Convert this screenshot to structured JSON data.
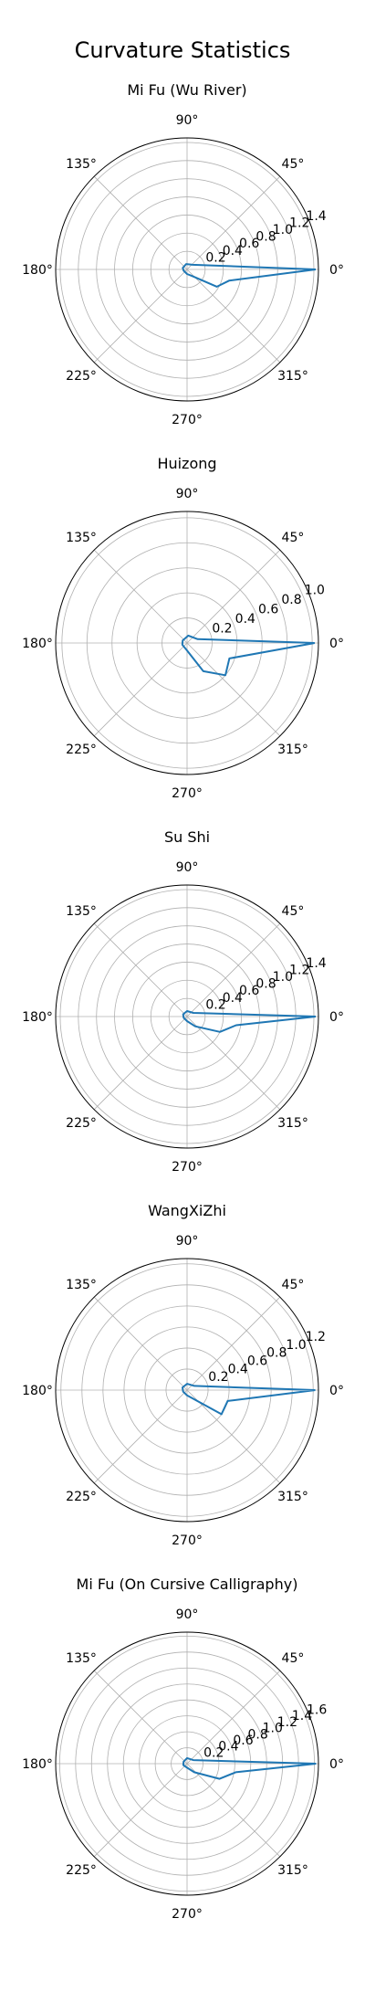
{
  "page_title": "Curvature Statistics",
  "chart_data": [
    {
      "type": "polar_line",
      "title": "Mi Fu (Wu River)",
      "theta_tick_labels": [
        "0°",
        "45°",
        "90°",
        "135°",
        "180°",
        "225°",
        "270°",
        "315°"
      ],
      "r_ticks": [
        0.2,
        0.4,
        0.6,
        0.8,
        1.0,
        1.2,
        1.4
      ],
      "r_tick_labels": [
        "0.2",
        "0.4",
        "0.6",
        "0.8",
        "1.0",
        "1.2",
        "1.4"
      ],
      "rmax": 1.45,
      "series": [
        {
          "color": "#1f77b4",
          "points": [
            {
              "theta": 0,
              "r": 1.42
            },
            {
              "theta": 345,
              "r": 0.48
            },
            {
              "theta": 330,
              "r": 0.38
            },
            {
              "theta": 310,
              "r": 0.1
            },
            {
              "theta": 270,
              "r": 0.05
            },
            {
              "theta": 200,
              "r": 0.04
            },
            {
              "theta": 160,
              "r": 0.05
            },
            {
              "theta": 100,
              "r": 0.06
            },
            {
              "theta": 40,
              "r": 0.08
            },
            {
              "theta": 0,
              "r": 1.42
            }
          ]
        }
      ]
    },
    {
      "type": "polar_line",
      "title": "Huizong",
      "theta_tick_labels": [
        "0°",
        "45°",
        "90°",
        "135°",
        "180°",
        "225°",
        "270°",
        "315°"
      ],
      "r_ticks": [
        0.2,
        0.4,
        0.6,
        0.8,
        1.0
      ],
      "r_tick_labels": [
        "0.2",
        "0.4",
        "0.6",
        "0.8",
        "1.0"
      ],
      "rmax": 1.05,
      "series": [
        {
          "color": "#1f77b4",
          "points": [
            {
              "theta": 0,
              "r": 1.02
            },
            {
              "theta": 340,
              "r": 0.36
            },
            {
              "theta": 320,
              "r": 0.4
            },
            {
              "theta": 300,
              "r": 0.26
            },
            {
              "theta": 270,
              "r": 0.06
            },
            {
              "theta": 200,
              "r": 0.04
            },
            {
              "theta": 150,
              "r": 0.04
            },
            {
              "theta": 80,
              "r": 0.06
            },
            {
              "theta": 20,
              "r": 0.09
            },
            {
              "theta": 0,
              "r": 1.02
            }
          ]
        }
      ]
    },
    {
      "type": "polar_line",
      "title": "Su Shi",
      "theta_tick_labels": [
        "0°",
        "45°",
        "90°",
        "135°",
        "180°",
        "225°",
        "270°",
        "315°"
      ],
      "r_ticks": [
        0.2,
        0.4,
        0.6,
        0.8,
        1.0,
        1.2,
        1.4
      ],
      "r_tick_labels": [
        "0.2",
        "0.4",
        "0.6",
        "0.8",
        "1.0",
        "1.2",
        "1.4"
      ],
      "rmax": 1.45,
      "series": [
        {
          "color": "#1f77b4",
          "points": [
            {
              "theta": 0,
              "r": 1.42
            },
            {
              "theta": 350,
              "r": 0.55
            },
            {
              "theta": 335,
              "r": 0.4
            },
            {
              "theta": 310,
              "r": 0.14
            },
            {
              "theta": 270,
              "r": 0.05
            },
            {
              "theta": 200,
              "r": 0.04
            },
            {
              "theta": 150,
              "r": 0.05
            },
            {
              "theta": 90,
              "r": 0.06
            },
            {
              "theta": 30,
              "r": 0.08
            },
            {
              "theta": 0,
              "r": 1.42
            }
          ]
        }
      ]
    },
    {
      "type": "polar_line",
      "title": "WangXiZhi",
      "theta_tick_labels": [
        "0°",
        "45°",
        "90°",
        "135°",
        "180°",
        "225°",
        "270°",
        "315°"
      ],
      "r_ticks": [
        0.2,
        0.4,
        0.6,
        0.8,
        1.0,
        1.2
      ],
      "r_tick_labels": [
        "0.2",
        "0.4",
        "0.6",
        "0.8",
        "1.0",
        "1.2"
      ],
      "rmax": 1.25,
      "series": [
        {
          "color": "#1f77b4",
          "points": [
            {
              "theta": 0,
              "r": 1.22
            },
            {
              "theta": 345,
              "r": 0.4
            },
            {
              "theta": 325,
              "r": 0.4
            },
            {
              "theta": 305,
              "r": 0.1
            },
            {
              "theta": 270,
              "r": 0.05
            },
            {
              "theta": 200,
              "r": 0.04
            },
            {
              "theta": 150,
              "r": 0.05
            },
            {
              "theta": 90,
              "r": 0.06
            },
            {
              "theta": 30,
              "r": 0.08
            },
            {
              "theta": 0,
              "r": 1.22
            }
          ]
        }
      ]
    },
    {
      "type": "polar_line",
      "title": "Mi Fu (On Cursive Calligraphy)",
      "theta_tick_labels": [
        "0°",
        "45°",
        "90°",
        "135°",
        "180°",
        "225°",
        "270°",
        "315°"
      ],
      "r_ticks": [
        0.2,
        0.4,
        0.6,
        0.8,
        1.0,
        1.2,
        1.4,
        1.6
      ],
      "r_tick_labels": [
        "0.2",
        "0.4",
        "0.6",
        "0.8",
        "1.0",
        "1.2",
        "1.4",
        "1.6"
      ],
      "rmax": 1.65,
      "series": [
        {
          "color": "#1f77b4",
          "points": [
            {
              "theta": 0,
              "r": 1.62
            },
            {
              "theta": 350,
              "r": 0.62
            },
            {
              "theta": 335,
              "r": 0.45
            },
            {
              "theta": 310,
              "r": 0.14
            },
            {
              "theta": 270,
              "r": 0.05
            },
            {
              "theta": 200,
              "r": 0.05
            },
            {
              "theta": 150,
              "r": 0.05
            },
            {
              "theta": 90,
              "r": 0.07
            },
            {
              "theta": 30,
              "r": 0.09
            },
            {
              "theta": 0,
              "r": 1.62
            }
          ]
        }
      ]
    }
  ]
}
